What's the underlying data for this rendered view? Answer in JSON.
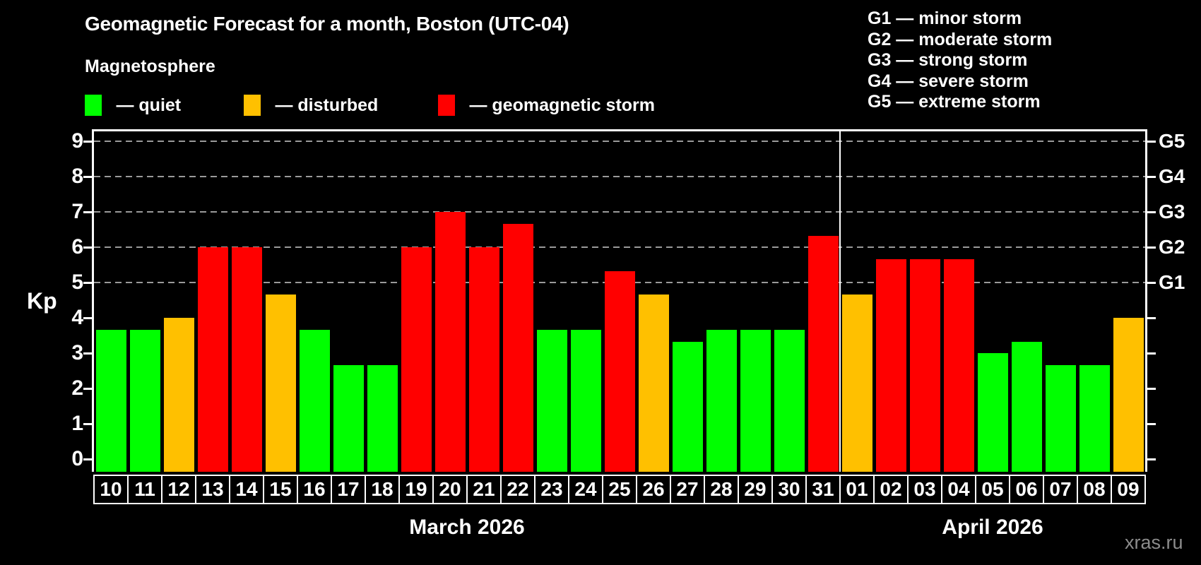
{
  "title": "Geomagnetic Forecast for a month, Boston (UTC-04)",
  "subtitle": "Magnetosphere",
  "legend": {
    "items": [
      {
        "key": "quiet",
        "label": "— quiet",
        "color": "#00ff00"
      },
      {
        "key": "disturbed",
        "label": "— disturbed",
        "color": "#ffc000"
      },
      {
        "key": "storm",
        "label": "— geomagnetic storm",
        "color": "#ff0000"
      }
    ]
  },
  "storm_scale_legend": [
    "G1 — minor storm",
    "G2 — moderate storm",
    "G3 — strong storm",
    "G4 — severe storm",
    "G5 — extreme storm"
  ],
  "watermark": "xras.ru",
  "chart_data": {
    "type": "bar",
    "title": "Geomagnetic Forecast for a month, Boston (UTC-04)",
    "ylabel": "Kp",
    "ylim": [
      -0.36,
      9.34
    ],
    "yticks": [
      0,
      1,
      2,
      3,
      4,
      5,
      6,
      7,
      8,
      9
    ],
    "gridlines_at": [
      5,
      6,
      7,
      8,
      9
    ],
    "grid": "horizontal dashed lines at Kp 5-9 only",
    "right_axis": [
      {
        "label": "G5",
        "kp": 9
      },
      {
        "label": "G4",
        "kp": 8
      },
      {
        "label": "G3",
        "kp": 7
      },
      {
        "label": "G2",
        "kp": 6
      },
      {
        "label": "G1",
        "kp": 5
      }
    ],
    "months": [
      {
        "label": "March 2026",
        "days": 22
      },
      {
        "label": "April 2026",
        "days": 9
      }
    ],
    "bars": [
      {
        "day": "10",
        "kp": 3.67,
        "status": "quiet"
      },
      {
        "day": "11",
        "kp": 3.67,
        "status": "quiet"
      },
      {
        "day": "12",
        "kp": 4.0,
        "status": "disturbed"
      },
      {
        "day": "13",
        "kp": 6.0,
        "status": "storm"
      },
      {
        "day": "14",
        "kp": 6.0,
        "status": "storm"
      },
      {
        "day": "15",
        "kp": 4.67,
        "status": "disturbed"
      },
      {
        "day": "16",
        "kp": 3.67,
        "status": "quiet"
      },
      {
        "day": "17",
        "kp": 2.67,
        "status": "quiet"
      },
      {
        "day": "18",
        "kp": 2.67,
        "status": "quiet"
      },
      {
        "day": "19",
        "kp": 6.0,
        "status": "storm"
      },
      {
        "day": "20",
        "kp": 7.0,
        "status": "storm"
      },
      {
        "day": "21",
        "kp": 6.0,
        "status": "storm"
      },
      {
        "day": "22",
        "kp": 6.67,
        "status": "storm"
      },
      {
        "day": "23",
        "kp": 3.67,
        "status": "quiet"
      },
      {
        "day": "24",
        "kp": 3.67,
        "status": "quiet"
      },
      {
        "day": "25",
        "kp": 5.33,
        "status": "storm"
      },
      {
        "day": "26",
        "kp": 4.67,
        "status": "disturbed"
      },
      {
        "day": "27",
        "kp": 3.33,
        "status": "quiet"
      },
      {
        "day": "28",
        "kp": 3.67,
        "status": "quiet"
      },
      {
        "day": "29",
        "kp": 3.67,
        "status": "quiet"
      },
      {
        "day": "30",
        "kp": 3.67,
        "status": "quiet"
      },
      {
        "day": "31",
        "kp": 6.33,
        "status": "storm"
      },
      {
        "day": "01",
        "kp": 4.67,
        "status": "disturbed"
      },
      {
        "day": "02",
        "kp": 5.67,
        "status": "storm"
      },
      {
        "day": "03",
        "kp": 5.67,
        "status": "storm"
      },
      {
        "day": "04",
        "kp": 5.67,
        "status": "storm"
      },
      {
        "day": "05",
        "kp": 3.0,
        "status": "quiet"
      },
      {
        "day": "06",
        "kp": 3.33,
        "status": "quiet"
      },
      {
        "day": "07",
        "kp": 2.67,
        "status": "quiet"
      },
      {
        "day": "08",
        "kp": 2.67,
        "status": "quiet"
      },
      {
        "day": "09",
        "kp": 4.0,
        "status": "disturbed"
      }
    ],
    "colors": {
      "axis": "#ffffff",
      "grid": "#9a9a9a",
      "background": "#000000",
      "watermark": "#8c8c8c"
    }
  }
}
